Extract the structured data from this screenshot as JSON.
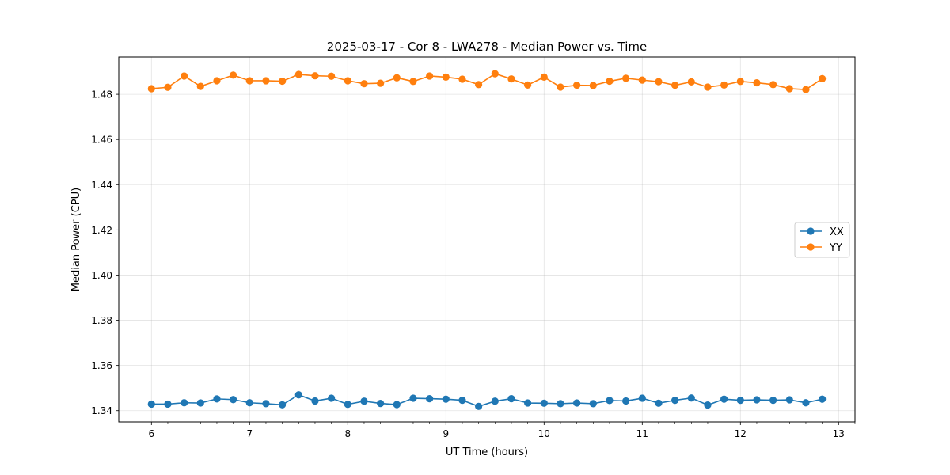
{
  "chart_data": {
    "type": "line",
    "title": "2025-03-17 - Cor 8 - LWA278 - Median Power vs. Time",
    "xlabel": "UT Time (hours)",
    "ylabel": "Median Power (CPU)",
    "xlim": [
      5.667,
      13.167
    ],
    "ylim": [
      1.335,
      1.4965
    ],
    "grid": true,
    "legend_position": "center-right",
    "x_ticks": [
      6,
      7,
      8,
      9,
      10,
      11,
      12,
      13
    ],
    "x_tick_labels": [
      "6",
      "7",
      "8",
      "9",
      "10",
      "11",
      "12",
      "13"
    ],
    "y_ticks": [
      1.34,
      1.36,
      1.38,
      1.4,
      1.42,
      1.44,
      1.46,
      1.48
    ],
    "y_tick_labels": [
      "1.34",
      "1.36",
      "1.38",
      "1.40",
      "1.42",
      "1.44",
      "1.46",
      "1.48"
    ],
    "x": [
      6.0,
      6.1667,
      6.3333,
      6.5,
      6.6667,
      6.8333,
      7.0,
      7.1667,
      7.3333,
      7.5,
      7.6667,
      7.8333,
      8.0,
      8.1667,
      8.3333,
      8.5,
      8.6667,
      8.8333,
      9.0,
      9.1667,
      9.3333,
      9.5,
      9.6667,
      9.8333,
      10.0,
      10.1667,
      10.3333,
      10.5,
      10.6667,
      10.8333,
      11.0,
      11.1667,
      11.3333,
      11.5,
      11.6667,
      11.8333,
      12.0,
      12.1667,
      12.3333,
      12.5,
      12.6667,
      12.8333
    ],
    "series": [
      {
        "name": "XX",
        "color": "#1f77b4",
        "values": [
          1.3429,
          1.3429,
          1.3435,
          1.3434,
          1.3452,
          1.3449,
          1.3435,
          1.3431,
          1.3426,
          1.347,
          1.3443,
          1.3455,
          1.3428,
          1.3442,
          1.3432,
          1.3427,
          1.3455,
          1.3453,
          1.3451,
          1.3446,
          1.3419,
          1.3442,
          1.3453,
          1.3434,
          1.3433,
          1.3431,
          1.3434,
          1.3431,
          1.3445,
          1.3443,
          1.3455,
          1.3433,
          1.3446,
          1.3456,
          1.3425,
          1.3451,
          1.3446,
          1.3448,
          1.3446,
          1.3448,
          1.3435,
          1.3451
        ]
      },
      {
        "name": "YY",
        "color": "#ff7f0e",
        "values": [
          1.4825,
          1.4831,
          1.4881,
          1.4835,
          1.486,
          1.4885,
          1.486,
          1.486,
          1.4858,
          1.4888,
          1.4882,
          1.488,
          1.486,
          1.4847,
          1.4849,
          1.4873,
          1.4857,
          1.4881,
          1.4876,
          1.4867,
          1.4843,
          1.4891,
          1.4868,
          1.4841,
          1.4876,
          1.4832,
          1.484,
          1.4839,
          1.4858,
          1.4871,
          1.4863,
          1.4856,
          1.484,
          1.4855,
          1.4832,
          1.4841,
          1.4857,
          1.4851,
          1.4843,
          1.4825,
          1.4821,
          1.4869
        ]
      }
    ]
  }
}
